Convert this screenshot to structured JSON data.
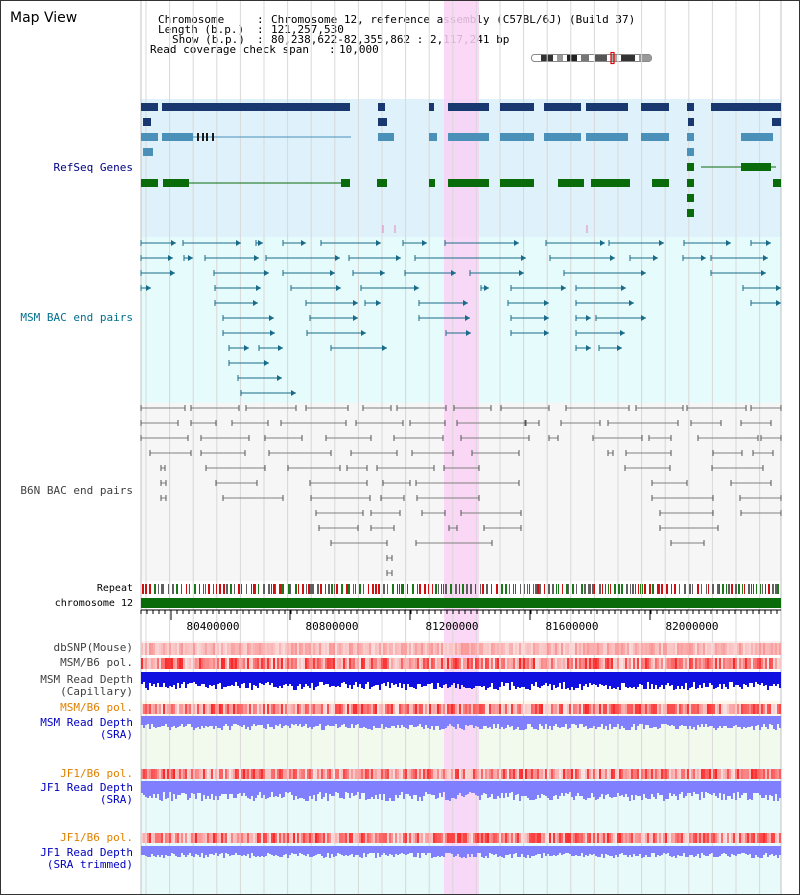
{
  "title": "Map View",
  "header": {
    "chromosome_label": "Chromosome",
    "chromosome_value": "Chromosome 12, reference assembly (C57BL/6J) (Build 37)",
    "length_label": "Length (b.p.)",
    "length_value": "121,257,530",
    "show_label": "Show (b.p.)",
    "show_value": "80,238,622-82,355,862 : 2,117,241 bp",
    "coverage_label": "Read coverage check span",
    "coverage_value": "10,000"
  },
  "tracks": {
    "refseq": "RefSeq Genes",
    "msm_bac": "MSM BAC end pairs",
    "b6n_bac": "B6N BAC end pairs",
    "repeat": "Repeat",
    "chromosome": "chromosome 12",
    "dbsnp": "dbSNP(Mouse)",
    "msm_pol1": "MSM/B6 pol.",
    "msm_depth_cap_1": "MSM Read Depth",
    "msm_depth_cap_2": "(Capillary)",
    "msm_pol2": "MSM/B6 pol.",
    "msm_depth_sra_1": "MSM Read Depth",
    "msm_depth_sra_2": "(SRA)",
    "jf1_pol1": "JF1/B6 pol.",
    "jf1_depth_sra_1": "JF1 Read Depth",
    "jf1_depth_sra_2": "(SRA)",
    "jf1_pol2": "JF1/B6 pol.",
    "jf1_depth_trim_1": "JF1 Read Depth",
    "jf1_depth_trim_2": "(SRA trimmed)"
  },
  "ruler": {
    "ticks": [
      "80400000",
      "80800000",
      "81200000",
      "81600000",
      "82000000"
    ]
  },
  "colors": {
    "refseq_bg": "#dff2fb",
    "msm_bg": "#e6fbfb",
    "b6n_bg": "#f6f6f6",
    "highlight": "#f9d1f5",
    "gene_dark": "#1a3870",
    "gene_teal": "#4a90b8",
    "gene_green": "#0a6b0a",
    "bac_teal": "#1a6b8a",
    "bac_gray": "#808080",
    "chrom_green": "#0a6b0a",
    "depth_blue": "#1010e0",
    "depth_lightblue": "#8080ff",
    "label_navy": "#000080",
    "label_teal": "#006f8f",
    "label_gray": "#404040",
    "label_orange": "#e08000",
    "label_blue": "#0000c0"
  }
}
